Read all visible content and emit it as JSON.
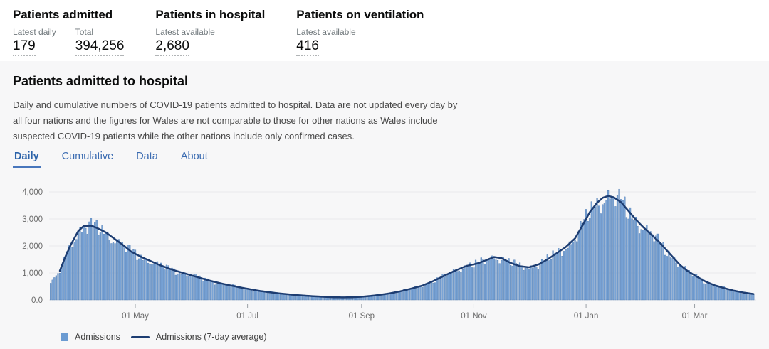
{
  "header": {
    "stats": [
      {
        "title": "Patients admitted",
        "metrics": [
          {
            "label": "Latest daily",
            "value": "179"
          },
          {
            "label": "Total",
            "value": "394,256"
          }
        ]
      },
      {
        "title": "Patients in hospital",
        "metrics": [
          {
            "label": "Latest available",
            "value": "2,680"
          }
        ]
      },
      {
        "title": "Patients on ventilation",
        "metrics": [
          {
            "label": "Latest available",
            "value": "416"
          }
        ]
      }
    ]
  },
  "card": {
    "title": "Patients admitted to hospital",
    "desc_lines": [
      "Daily and cumulative numbers of COVID-19 patients admitted to hospital. Data are not updated every day by",
      "all four nations and the figures for Wales are not comparable to those for other nations as Wales include",
      "suspected COVID-19 patients while the other nations include only confirmed cases."
    ],
    "tabs": [
      {
        "label": "Daily",
        "active": true
      },
      {
        "label": "Cumulative",
        "active": false
      },
      {
        "label": "Data",
        "active": false
      },
      {
        "label": "About",
        "active": false
      }
    ]
  },
  "chart_data": {
    "type": "bar",
    "title": "Daily COVID-19 hospital admissions with 7-day average",
    "date_range": [
      "2020-03-16",
      "2021-04-02"
    ],
    "x_axis": {
      "ticks": [
        {
          "label": "01 May",
          "date": "2020-05-01"
        },
        {
          "label": "01 Jul",
          "date": "2020-07-01"
        },
        {
          "label": "01 Sep",
          "date": "2020-09-01"
        },
        {
          "label": "01 Nov",
          "date": "2020-11-01"
        },
        {
          "label": "01 Jan",
          "date": "2021-01-01"
        },
        {
          "label": "01 Mar",
          "date": "2021-03-01"
        }
      ]
    },
    "y_axis": {
      "ticks": [
        {
          "label": "0.0",
          "value": 0
        },
        {
          "label": "1,000",
          "value": 1000
        },
        {
          "label": "2,000",
          "value": 2000
        },
        {
          "label": "3,000",
          "value": 3000
        },
        {
          "label": "4,000",
          "value": 4000
        }
      ],
      "range": [
        0,
        4400
      ],
      "grid": true
    },
    "legend_position": "bottom-left",
    "observed_extremes": {
      "first_wave_avg_peak": 2750,
      "first_wave_daily_bar_max": 3100,
      "autumn_avg_peak": 1590,
      "early_december_trough": 1210,
      "winter_avg_peak": 3850,
      "winter_daily_bar_max": 4130,
      "summer_minimum_avg": 95,
      "final_avg_value": 220
    },
    "series": [
      {
        "name": "Admissions",
        "type": "bar",
        "color": "#7aa4d6",
        "edge_color": "#4a78b0",
        "legend_color": "#6b9bd2",
        "lead_in_daily": [
          [
            "2020-03-16",
            620
          ],
          [
            "2020-03-17",
            740
          ],
          [
            "2020-03-18",
            830
          ],
          [
            "2020-03-19",
            900
          ],
          [
            "2020-03-20",
            980
          ]
        ],
        "derived_from": "7-day average curve with deterministic daily variation",
        "variation": {
          "amp1": 0.055,
          "freq1": 2.1,
          "amp2": 0.045,
          "freq2": 0.33,
          "weekend_dip": 0.075,
          "weekday_lift": 0.02
        }
      },
      {
        "name": "Admissions (7-day average)",
        "type": "line",
        "color": "#1d3d72",
        "stroke_width": 2.5,
        "points": [
          [
            "2020-03-21",
            1080
          ],
          [
            "2020-03-24",
            1600
          ],
          [
            "2020-03-27",
            2050
          ],
          [
            "2020-03-31",
            2550
          ],
          [
            "2020-04-03",
            2740
          ],
          [
            "2020-04-07",
            2750
          ],
          [
            "2020-04-11",
            2640
          ],
          [
            "2020-04-15",
            2500
          ],
          [
            "2020-04-19",
            2300
          ],
          [
            "2020-04-24",
            2050
          ],
          [
            "2020-04-29",
            1780
          ],
          [
            "2020-05-04",
            1600
          ],
          [
            "2020-05-09",
            1450
          ],
          [
            "2020-05-14",
            1300
          ],
          [
            "2020-05-19",
            1170
          ],
          [
            "2020-05-24",
            1060
          ],
          [
            "2020-05-29",
            960
          ],
          [
            "2020-06-03",
            860
          ],
          [
            "2020-06-08",
            760
          ],
          [
            "2020-06-13",
            670
          ],
          [
            "2020-06-18",
            590
          ],
          [
            "2020-06-23",
            520
          ],
          [
            "2020-06-28",
            450
          ],
          [
            "2020-07-03",
            390
          ],
          [
            "2020-07-08",
            330
          ],
          [
            "2020-07-13",
            285
          ],
          [
            "2020-07-18",
            245
          ],
          [
            "2020-07-23",
            210
          ],
          [
            "2020-07-28",
            180
          ],
          [
            "2020-08-02",
            155
          ],
          [
            "2020-08-07",
            135
          ],
          [
            "2020-08-12",
            115
          ],
          [
            "2020-08-17",
            100
          ],
          [
            "2020-08-22",
            95
          ],
          [
            "2020-08-27",
            100
          ],
          [
            "2020-09-01",
            120
          ],
          [
            "2020-09-06",
            150
          ],
          [
            "2020-09-11",
            190
          ],
          [
            "2020-09-16",
            240
          ],
          [
            "2020-09-22",
            320
          ],
          [
            "2020-09-28",
            420
          ],
          [
            "2020-10-04",
            530
          ],
          [
            "2020-10-10",
            700
          ],
          [
            "2020-10-16",
            900
          ],
          [
            "2020-10-22",
            1090
          ],
          [
            "2020-10-28",
            1260
          ],
          [
            "2020-11-03",
            1350
          ],
          [
            "2020-11-08",
            1480
          ],
          [
            "2020-11-12",
            1590
          ],
          [
            "2020-11-16",
            1550
          ],
          [
            "2020-11-21",
            1370
          ],
          [
            "2020-11-26",
            1250
          ],
          [
            "2020-12-01",
            1210
          ],
          [
            "2020-12-06",
            1310
          ],
          [
            "2020-12-11",
            1500
          ],
          [
            "2020-12-16",
            1730
          ],
          [
            "2020-12-21",
            1960
          ],
          [
            "2020-12-26",
            2280
          ],
          [
            "2020-12-30",
            2750
          ],
          [
            "2021-01-03",
            3250
          ],
          [
            "2021-01-07",
            3600
          ],
          [
            "2021-01-10",
            3780
          ],
          [
            "2021-01-13",
            3850
          ],
          [
            "2021-01-16",
            3800
          ],
          [
            "2021-01-20",
            3620
          ],
          [
            "2021-01-24",
            3300
          ],
          [
            "2021-01-28",
            2980
          ],
          [
            "2021-02-01",
            2700
          ],
          [
            "2021-02-05",
            2450
          ],
          [
            "2021-02-09",
            2200
          ],
          [
            "2021-02-13",
            1900
          ],
          [
            "2021-02-17",
            1600
          ],
          [
            "2021-02-21",
            1300
          ],
          [
            "2021-02-25",
            1080
          ],
          [
            "2021-03-02",
            870
          ],
          [
            "2021-03-07",
            680
          ],
          [
            "2021-03-12",
            540
          ],
          [
            "2021-03-17",
            440
          ],
          [
            "2021-03-22",
            350
          ],
          [
            "2021-03-27",
            280
          ],
          [
            "2021-04-02",
            220
          ]
        ]
      }
    ]
  },
  "colors": {
    "panel_background": "#f7f7f8",
    "bar_fill": "#7aa4d6",
    "line": "#1d3d72",
    "tab_active": "#2b62a9",
    "tab_inactive": "#3a6bb1",
    "tab_underline": "#4876bc",
    "axis_text": "#6b6b6b",
    "gridline": "#e9e9ed",
    "stat_label": "#6f777b",
    "dotted_underline": "#b1b4b6"
  }
}
